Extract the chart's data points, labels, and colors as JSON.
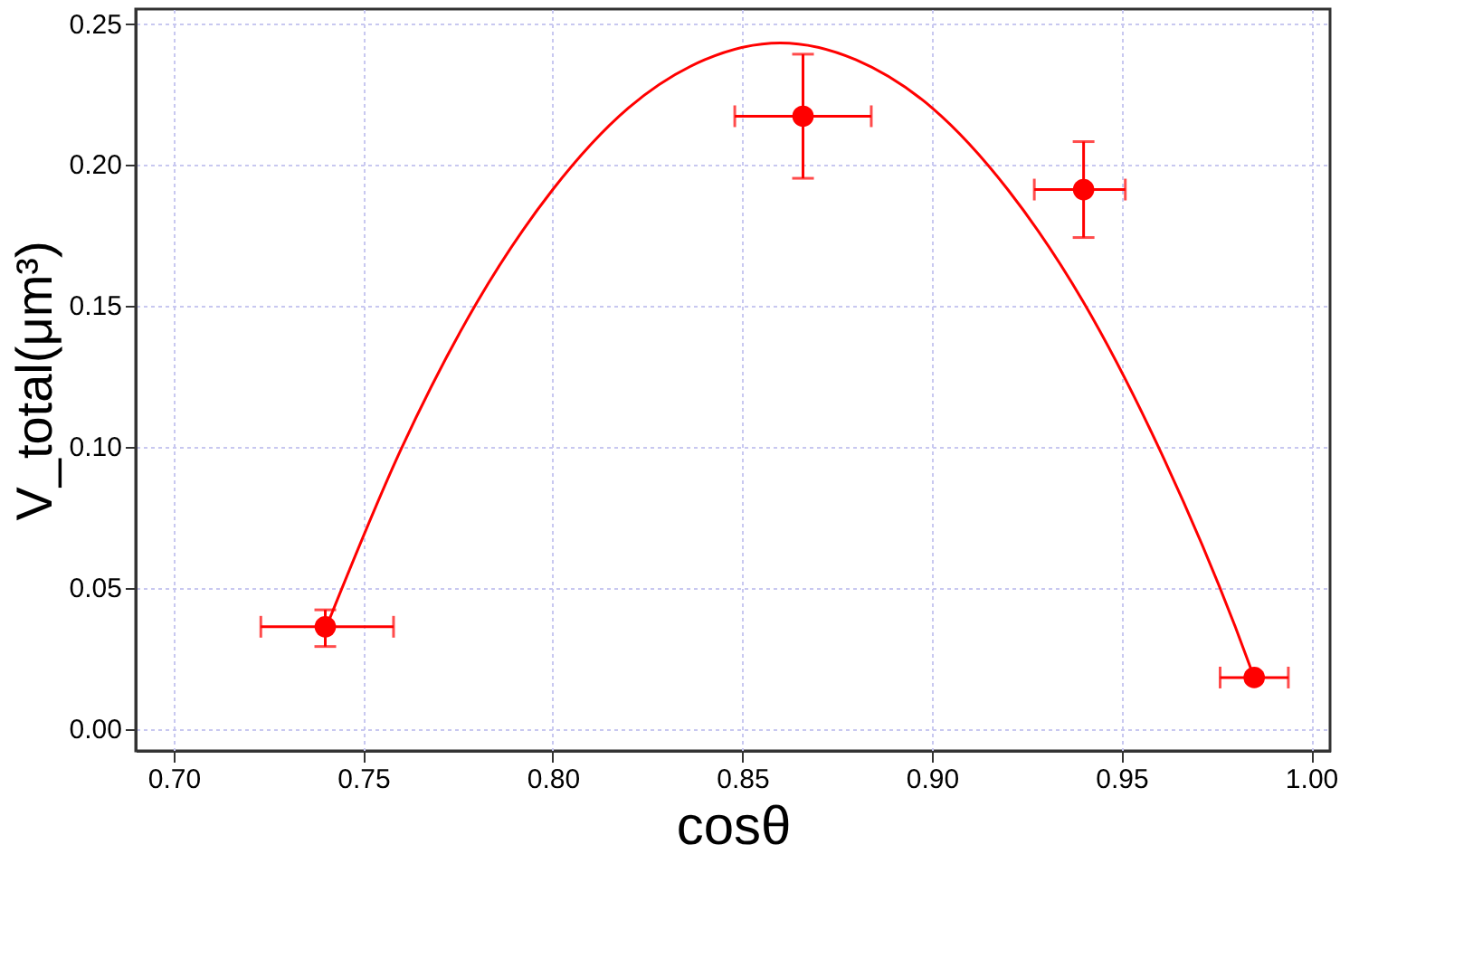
{
  "chart_data": {
    "type": "scatter",
    "xlabel": "cosθ",
    "ylabel": "V_total(μm³)",
    "xlim": [
      0.69,
      1.005
    ],
    "ylim": [
      -0.008,
      0.255
    ],
    "xticks": [
      {
        "value": 0.7,
        "label": "0.70"
      },
      {
        "value": 0.75,
        "label": "0.75"
      },
      {
        "value": 0.8,
        "label": "0.80"
      },
      {
        "value": 0.85,
        "label": "0.85"
      },
      {
        "value": 0.9,
        "label": "0.90"
      },
      {
        "value": 0.95,
        "label": "0.95"
      },
      {
        "value": 1.0,
        "label": "1.00"
      }
    ],
    "yticks": [
      {
        "value": 0,
        "label": "0.00"
      },
      {
        "value": 0.05,
        "label": "0.05"
      },
      {
        "value": 0.1,
        "label": "0.10"
      },
      {
        "value": 0.15,
        "label": "0.15"
      },
      {
        "value": 0.2,
        "label": "0.20"
      },
      {
        "value": 0.25,
        "label": "0.25"
      }
    ],
    "grid": true,
    "marker": "circle",
    "series": [
      {
        "color": "#ff0000",
        "x": [
          0.74,
          0.866,
          0.94,
          0.985
        ],
        "values": [
          0.036,
          0.217,
          0.191,
          0.018
        ],
        "errors": [
          [
            0.029,
            0.042
          ],
          [
            0.195,
            0.239
          ],
          [
            0.174,
            0.208
          ],
          null
        ],
        "xerrors": [
          [
            0.723,
            0.758
          ],
          [
            0.848,
            0.884
          ],
          [
            0.927,
            0.951
          ],
          [
            0.976,
            0.994
          ]
        ]
      },
      {
        "type": "line",
        "color": "#ff0000",
        "marker": "none",
        "line_style": "solid",
        "x": [
          0.74,
          0.76,
          0.78,
          0.8,
          0.82,
          0.84,
          0.86,
          0.88,
          0.9,
          0.92,
          0.94,
          0.96,
          0.98,
          0.985
        ],
        "values": [
          0.035,
          0.099,
          0.151,
          0.191,
          0.22,
          0.237,
          0.243,
          0.237,
          0.22,
          0.191,
          0.151,
          0.099,
          0.036,
          0.018
        ]
      }
    ]
  }
}
